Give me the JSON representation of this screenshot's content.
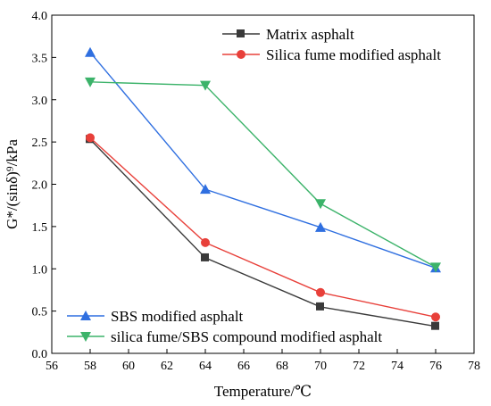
{
  "chart_data": {
    "type": "line",
    "xlabel": "Temperature/℃",
    "ylabel": "G*/(sinδ)⁹/kPa",
    "xlim": [
      56,
      78
    ],
    "ylim": [
      0.0,
      4.0
    ],
    "xticks": [
      56,
      58,
      60,
      62,
      64,
      66,
      68,
      70,
      72,
      74,
      76,
      78
    ],
    "yticks": [
      0.0,
      0.5,
      1.0,
      1.5,
      2.0,
      2.5,
      3.0,
      3.5,
      4.0
    ],
    "ytick_labels": [
      "0.0",
      "0.5",
      "1.0",
      "1.5",
      "2.0",
      "2.5",
      "3.0",
      "3.5",
      "4.0"
    ],
    "grid": false,
    "x": [
      58,
      64,
      70,
      76
    ],
    "series": [
      {
        "name": "Matrix asphalt",
        "values": [
          2.53,
          1.13,
          0.55,
          0.32
        ],
        "color": "#3a3a3a",
        "marker": "square",
        "legend": "top"
      },
      {
        "name": "Silica fume modified asphalt",
        "values": [
          2.55,
          1.31,
          0.72,
          0.43
        ],
        "color": "#e8403a",
        "marker": "circle",
        "legend": "top"
      },
      {
        "name": "SBS modified asphalt",
        "values": [
          3.56,
          1.94,
          1.49,
          1.01
        ],
        "color": "#2f6fe0",
        "marker": "triangle-up",
        "legend": "bottom"
      },
      {
        "name": "silica fume/SBS compound modified asphalt",
        "values": [
          3.21,
          3.17,
          1.77,
          1.02
        ],
        "color": "#3cb36a",
        "marker": "triangle-down",
        "legend": "bottom"
      }
    ],
    "legend_placement": [
      "top-right",
      "bottom-left"
    ]
  }
}
